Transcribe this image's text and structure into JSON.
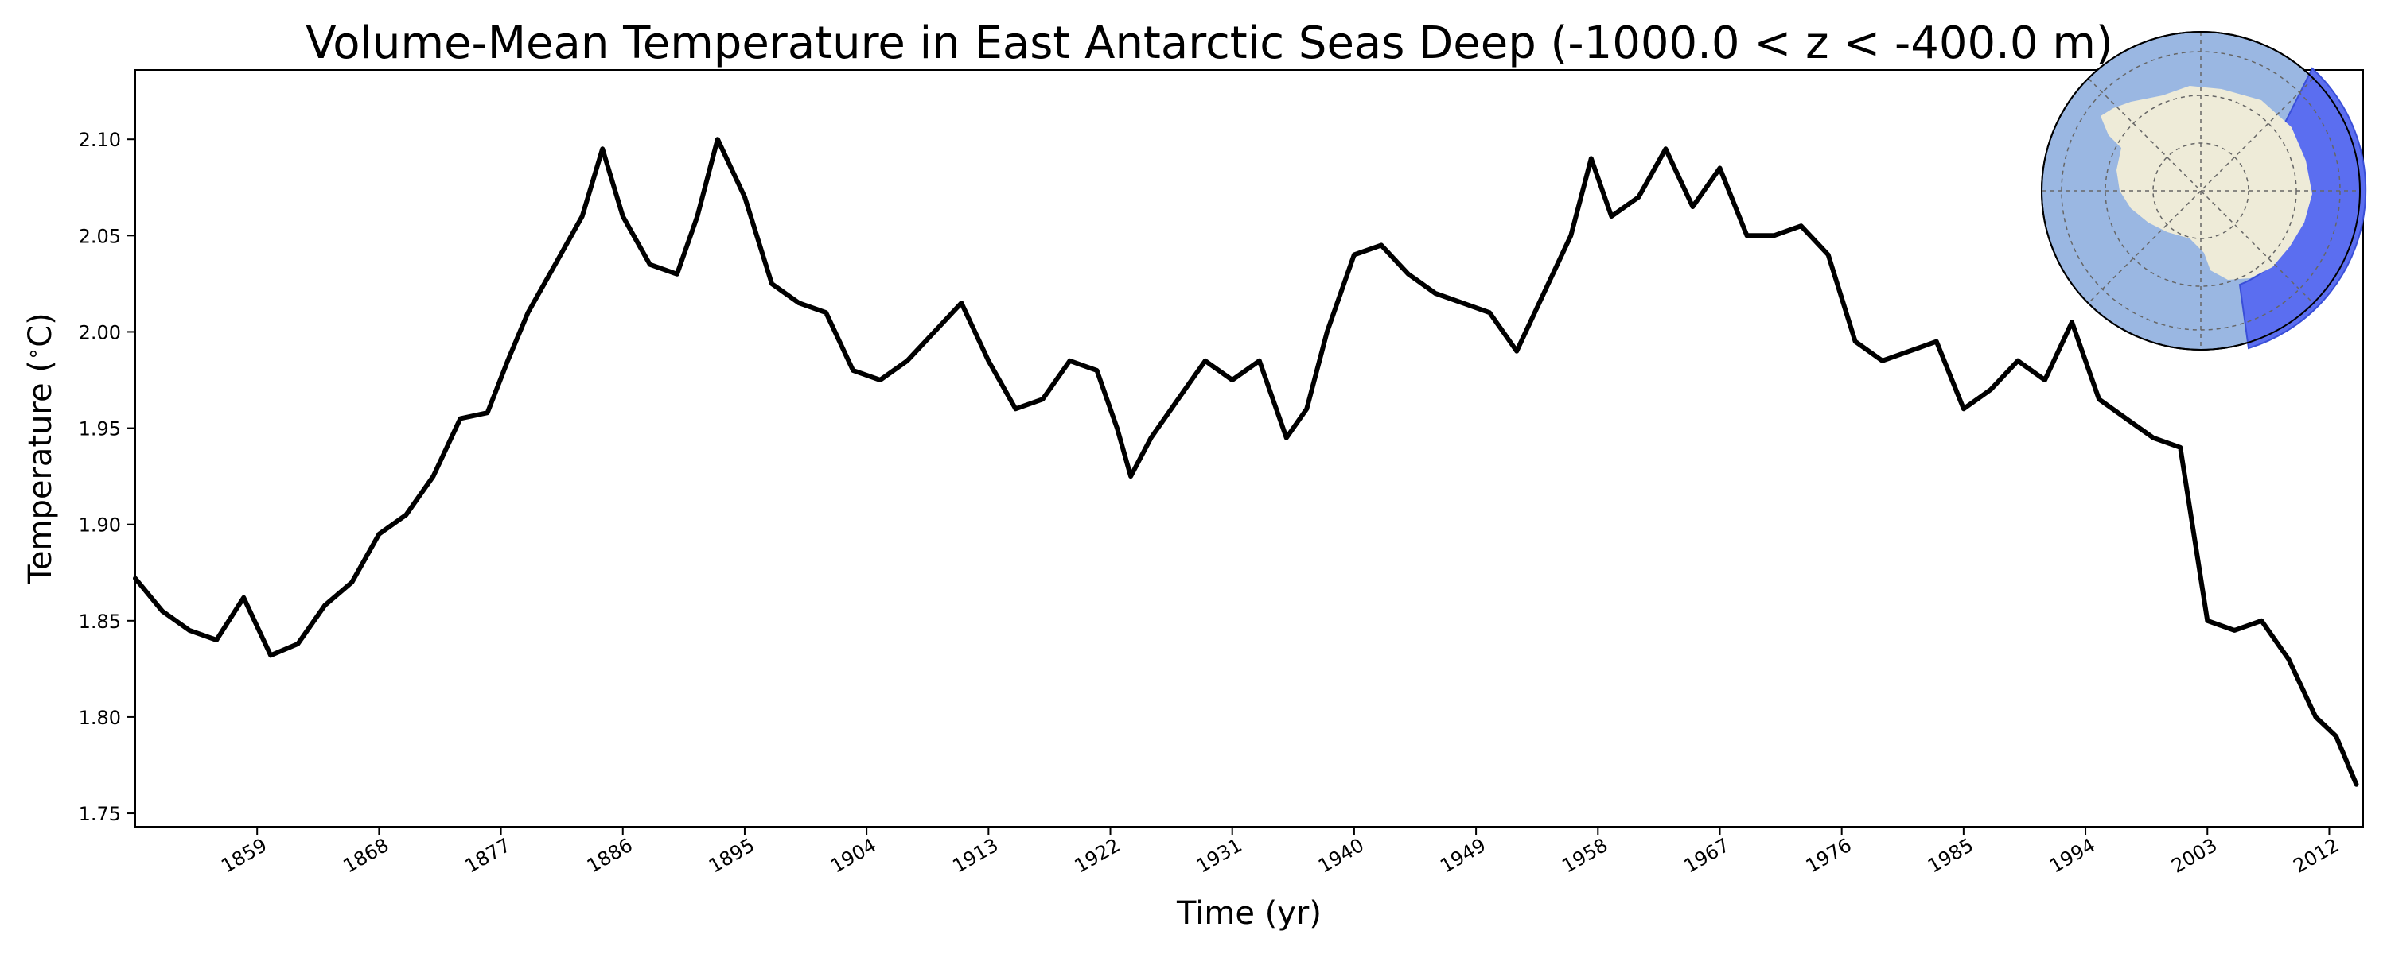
{
  "chart_data": {
    "type": "line",
    "title": "Volume-Mean Temperature in East Antarctic Seas Deep (-1000.0 < z < -400.0 m)",
    "xlabel": "Time (yr)",
    "ylabel": "Temperature ($^\\circ$C)",
    "xlim": [
      1850.0,
      2014.5
    ],
    "ylim": [
      1.743,
      2.136
    ],
    "x_ticks": [
      1859,
      1868,
      1877,
      1886,
      1895,
      1904,
      1913,
      1922,
      1931,
      1940,
      1949,
      1958,
      1967,
      1976,
      1985,
      1994,
      2003,
      2012
    ],
    "x_tick_labels": [
      "1859",
      "1868",
      "1877",
      "1886",
      "1895",
      "1904",
      "1913",
      "1922",
      "1931",
      "1940",
      "1949",
      "1958",
      "1967",
      "1976",
      "1985",
      "1994",
      "2003",
      "2012"
    ],
    "y_ticks": [
      1.75,
      1.8,
      1.85,
      1.9,
      1.95,
      2.0,
      2.05,
      2.1
    ],
    "y_tick_labels": [
      "1.75",
      "1.80",
      "1.85",
      "1.90",
      "1.95",
      "2.00",
      "2.05",
      "2.10"
    ],
    "grid": false,
    "series": [
      {
        "color": "#000000",
        "x": [
          1850,
          1852,
          1854,
          1856,
          1858,
          1860,
          1862,
          1864,
          1866,
          1868,
          1870,
          1872,
          1874,
          1876,
          1877.5,
          1879,
          1881,
          1883,
          1884.5,
          1886,
          1888,
          1890,
          1891.5,
          1893,
          1895,
          1897,
          1899,
          1901,
          1903,
          1905,
          1907,
          1909,
          1911,
          1913,
          1915,
          1917,
          1919,
          1921,
          1922.5,
          1923.5,
          1925,
          1927,
          1929,
          1931,
          1933,
          1935,
          1936.5,
          1938,
          1940,
          1942,
          1944,
          1946,
          1948,
          1950,
          1952,
          1954,
          1956,
          1957.5,
          1959,
          1961,
          1963,
          1965,
          1967,
          1969,
          1971,
          1973,
          1975,
          1977,
          1979,
          1981,
          1983,
          1985,
          1987,
          1989,
          1991,
          1993,
          1995,
          1997,
          1999,
          2001,
          2003,
          2005,
          2007,
          2009,
          2011,
          2012.5,
          2014
        ],
        "y": [
          1.872,
          1.855,
          1.845,
          1.84,
          1.862,
          1.832,
          1.838,
          1.858,
          1.87,
          1.895,
          1.905,
          1.925,
          1.955,
          1.958,
          1.985,
          2.01,
          2.035,
          2.06,
          2.095,
          2.06,
          2.035,
          2.03,
          2.06,
          2.1,
          2.07,
          2.025,
          2.015,
          2.01,
          1.98,
          1.975,
          1.985,
          2.0,
          2.015,
          1.985,
          1.96,
          1.965,
          1.985,
          1.98,
          1.95,
          1.925,
          1.945,
          1.965,
          1.985,
          1.975,
          1.985,
          1.945,
          1.96,
          2.0,
          2.04,
          2.045,
          2.03,
          2.02,
          2.015,
          2.01,
          1.99,
          2.02,
          2.05,
          2.09,
          2.06,
          2.07,
          2.095,
          2.065,
          2.085,
          2.05,
          2.05,
          2.055,
          2.04,
          1.995,
          1.985,
          1.99,
          1.995,
          1.96,
          1.97,
          1.985,
          1.975,
          2.005,
          1.965,
          1.955,
          1.945,
          1.94,
          1.85,
          1.845,
          1.85,
          1.83,
          1.8,
          1.79,
          1.765
        ]
      }
    ]
  }
}
